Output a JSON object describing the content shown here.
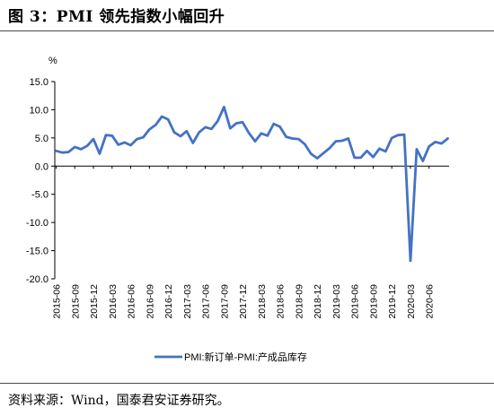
{
  "figure_title": "图 3：PMI 领先指数小幅回升",
  "source": "资料来源：Wind，国泰君安证券研究。",
  "chart_data": {
    "type": "line",
    "title": "",
    "xlabel": "",
    "ylabel": "%",
    "ylim": [
      -20,
      15
    ],
    "y_ticks": [
      "15.0",
      "10.0",
      "5.0",
      "0.0",
      "-5.0",
      "-10.0",
      "-15.0",
      "-20.0"
    ],
    "x_tick_labels": [
      "2015-06",
      "2015-09",
      "2015-12",
      "2016-03",
      "2016-06",
      "2016-09",
      "2016-12",
      "2017-03",
      "2017-06",
      "2017-09",
      "2017-12",
      "2018-03",
      "2018-06",
      "2018-09",
      "2018-12",
      "2019-03",
      "2019-06",
      "2019-09",
      "2019-12",
      "2020-03",
      "2020-06"
    ],
    "grid": false,
    "legend_position": "bottom-center",
    "series": [
      {
        "name": "PMI:新订单-PMI:产成品库存",
        "color": "#4472C4",
        "x": [
          "2015-06",
          "2015-07",
          "2015-08",
          "2015-09",
          "2015-10",
          "2015-11",
          "2015-12",
          "2016-01",
          "2016-02",
          "2016-03",
          "2016-04",
          "2016-05",
          "2016-06",
          "2016-07",
          "2016-08",
          "2016-09",
          "2016-10",
          "2016-11",
          "2016-12",
          "2017-01",
          "2017-02",
          "2017-03",
          "2017-04",
          "2017-05",
          "2017-06",
          "2017-07",
          "2017-08",
          "2017-09",
          "2017-10",
          "2017-11",
          "2017-12",
          "2018-01",
          "2018-02",
          "2018-03",
          "2018-04",
          "2018-05",
          "2018-06",
          "2018-07",
          "2018-08",
          "2018-09",
          "2018-10",
          "2018-11",
          "2018-12",
          "2019-01",
          "2019-02",
          "2019-03",
          "2019-04",
          "2019-05",
          "2019-06",
          "2019-07",
          "2019-08",
          "2019-09",
          "2019-10",
          "2019-11",
          "2019-12",
          "2020-01",
          "2020-02",
          "2020-03",
          "2020-04",
          "2020-05",
          "2020-06",
          "2020-07",
          "2020-08",
          "2020-09"
        ],
        "values": [
          2.7,
          2.4,
          2.5,
          3.4,
          3.0,
          3.6,
          4.8,
          2.2,
          5.5,
          5.4,
          3.8,
          4.2,
          3.7,
          4.8,
          5.1,
          6.5,
          7.3,
          8.8,
          8.3,
          6.0,
          5.3,
          6.2,
          4.1,
          6.0,
          6.9,
          6.6,
          8.0,
          10.5,
          6.7,
          7.6,
          7.8,
          5.9,
          4.4,
          5.8,
          5.4,
          7.5,
          7.0,
          5.2,
          4.9,
          4.8,
          3.9,
          2.2,
          1.4,
          2.3,
          3.2,
          4.4,
          4.5,
          4.9,
          1.5,
          1.5,
          2.7,
          1.6,
          3.1,
          2.6,
          5.0,
          5.5,
          5.6,
          -16.8,
          3.0,
          0.9,
          3.5,
          4.3,
          4.0,
          4.9
        ]
      }
    ]
  }
}
